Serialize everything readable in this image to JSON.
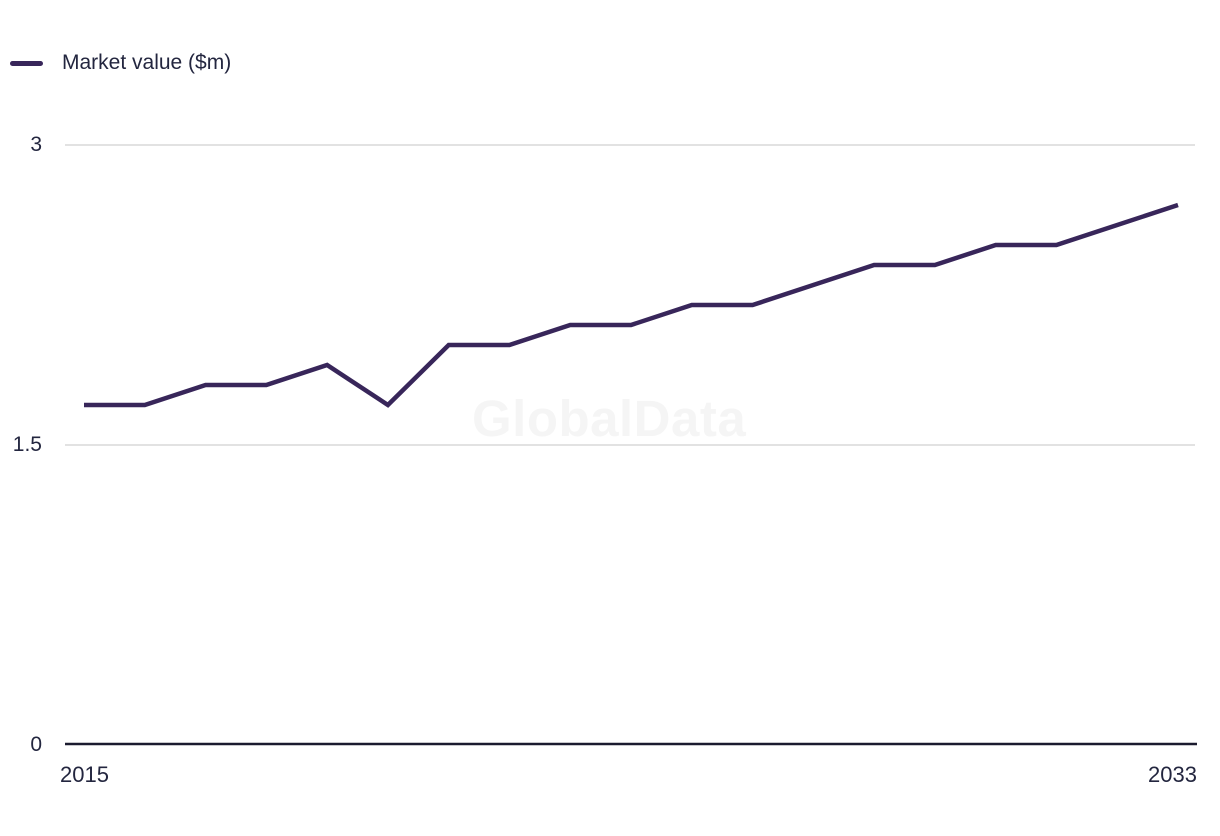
{
  "legend": {
    "label": "Market value ($m)",
    "position": "top-left"
  },
  "watermark": "GlobalData",
  "colors": {
    "line": "#38265a",
    "axis": "#1b1b2f",
    "grid": "#e2e2e2",
    "text": "#23263f",
    "watermark": "#f5f5f5"
  },
  "axis": {
    "y_tick_labels": [
      "3",
      "1.5",
      "0"
    ],
    "x_tick_labels": [
      "2015",
      "2033"
    ]
  },
  "chart_data": {
    "type": "line",
    "title": "",
    "xlabel": "",
    "ylabel": "Market value ($m)",
    "x": [
      2015,
      2016,
      2017,
      2018,
      2019,
      2020,
      2021,
      2022,
      2023,
      2024,
      2025,
      2026,
      2027,
      2028,
      2029,
      2030,
      2031,
      2032,
      2033
    ],
    "series": [
      {
        "name": "Market value ($m)",
        "values": [
          1.7,
          1.7,
          1.8,
          1.8,
          1.9,
          1.7,
          2.0,
          2.0,
          2.1,
          2.1,
          2.2,
          2.2,
          2.3,
          2.4,
          2.4,
          2.5,
          2.5,
          2.6,
          2.7
        ]
      }
    ],
    "ylim": [
      0,
      3
    ],
    "y_ticks": [
      0,
      1.5,
      3
    ],
    "x_ticks_shown": [
      2015,
      2033
    ],
    "grid": "horizontal",
    "legend_position": "top-left"
  }
}
